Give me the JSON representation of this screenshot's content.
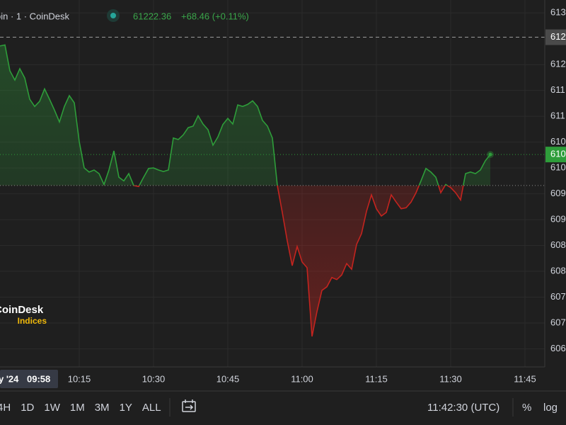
{
  "header": {
    "title": "oin · 1 · CoinDesk",
    "price": "61222.36",
    "change": "+68.46 (+0.11%)"
  },
  "watermark": {
    "name": "CoinDesk",
    "sub": "Indices"
  },
  "chart_data": {
    "type": "line",
    "x": [
      "09:59",
      "10:00",
      "10:01",
      "10:02",
      "10:03",
      "10:04",
      "10:05",
      "10:06",
      "10:07",
      "10:08",
      "10:09",
      "10:10",
      "10:11",
      "10:12",
      "10:13",
      "10:14",
      "10:15",
      "10:16",
      "10:17",
      "10:18",
      "10:19",
      "10:20",
      "10:21",
      "10:22",
      "10:23",
      "10:24",
      "10:25",
      "10:26",
      "10:27",
      "10:28",
      "10:29",
      "10:30",
      "10:31",
      "10:32",
      "10:33",
      "10:34",
      "10:35",
      "10:36",
      "10:37",
      "10:38",
      "10:39",
      "10:40",
      "10:41",
      "10:42",
      "10:43",
      "10:44",
      "10:45",
      "10:46",
      "10:47",
      "10:48",
      "10:49",
      "10:50",
      "10:51",
      "10:52",
      "10:53",
      "10:54",
      "10:55",
      "10:56",
      "10:57",
      "10:58",
      "10:59",
      "11:00",
      "11:01",
      "11:02",
      "11:03",
      "11:04",
      "11:05",
      "11:06",
      "11:07",
      "11:08",
      "11:09",
      "11:10",
      "11:11",
      "11:12",
      "11:13",
      "11:14",
      "11:15",
      "11:16",
      "11:17",
      "11:18",
      "11:19",
      "11:20",
      "11:21",
      "11:22",
      "11:23",
      "11:24",
      "11:25",
      "11:26",
      "11:27",
      "11:28",
      "11:29",
      "11:30",
      "11:31",
      "11:32",
      "11:33",
      "11:34",
      "11:35",
      "11:36",
      "11:37",
      "11:38"
    ],
    "values": [
      61236,
      61238,
      61188,
      61170,
      61192,
      61174,
      61133,
      61119,
      61129,
      61153,
      61133,
      61112,
      61089,
      61119,
      61140,
      61126,
      61051,
      61000,
      60992,
      60996,
      60989,
      60968,
      60996,
      61033,
      60982,
      60975,
      60989,
      60966,
      60964,
      60982,
      60999,
      61000,
      60996,
      60993,
      60996,
      61058,
      61055,
      61064,
      61078,
      61081,
      61101,
      61085,
      61074,
      61044,
      61060,
      61084,
      61096,
      61085,
      61122,
      61119,
      61123,
      61130,
      61119,
      61092,
      61081,
      61058,
      60966,
      60914,
      60859,
      60811,
      60848,
      60818,
      60807,
      60674,
      60722,
      60763,
      60770,
      60788,
      60784,
      60793,
      60815,
      60804,
      60852,
      60873,
      60916,
      60948,
      60921,
      60907,
      60914,
      60948,
      60934,
      60921,
      60923,
      60934,
      60952,
      60975,
      60999,
      60992,
      60982,
      60952,
      60968,
      60962,
      60952,
      60938,
      60989,
      60992,
      60989,
      60996,
      61014,
      61026
    ],
    "baseline": 60966,
    "up_color": "#2e9d3a",
    "down_color": "#c4241f",
    "xlim": [
      "09:59",
      "11:49"
    ],
    "xticks": [
      "10:15",
      "10:30",
      "10:45",
      "11:00",
      "11:15",
      "11:30",
      "11:45"
    ],
    "ylim": [
      60615,
      61325
    ],
    "yticks": [
      {
        "value": 61300,
        "label": "613"
      },
      {
        "value": 61200,
        "label": "612"
      },
      {
        "value": 61150,
        "label": "611"
      },
      {
        "value": 61100,
        "label": "611"
      },
      {
        "value": 61050,
        "label": "610"
      },
      {
        "value": 61000,
        "label": "610"
      },
      {
        "value": 60950,
        "label": "609"
      },
      {
        "value": 60900,
        "label": "609"
      },
      {
        "value": 60850,
        "label": "608"
      },
      {
        "value": 60800,
        "label": "608"
      },
      {
        "value": 60750,
        "label": "607"
      },
      {
        "value": 60700,
        "label": "607"
      },
      {
        "value": 60650,
        "label": "606"
      }
    ],
    "high_marker": {
      "value": 61253,
      "label": "612"
    },
    "last_marker": {
      "value": 61026,
      "label": "610"
    },
    "grid": true,
    "crosshair_date": "y '24",
    "crosshair_time": "09:58"
  },
  "toolbar": {
    "ranges": [
      "4H",
      "1D",
      "1W",
      "1M",
      "3M",
      "1Y",
      "ALL"
    ],
    "clock": "11:42:30 (UTC)",
    "percent": "%",
    "log": "log"
  }
}
